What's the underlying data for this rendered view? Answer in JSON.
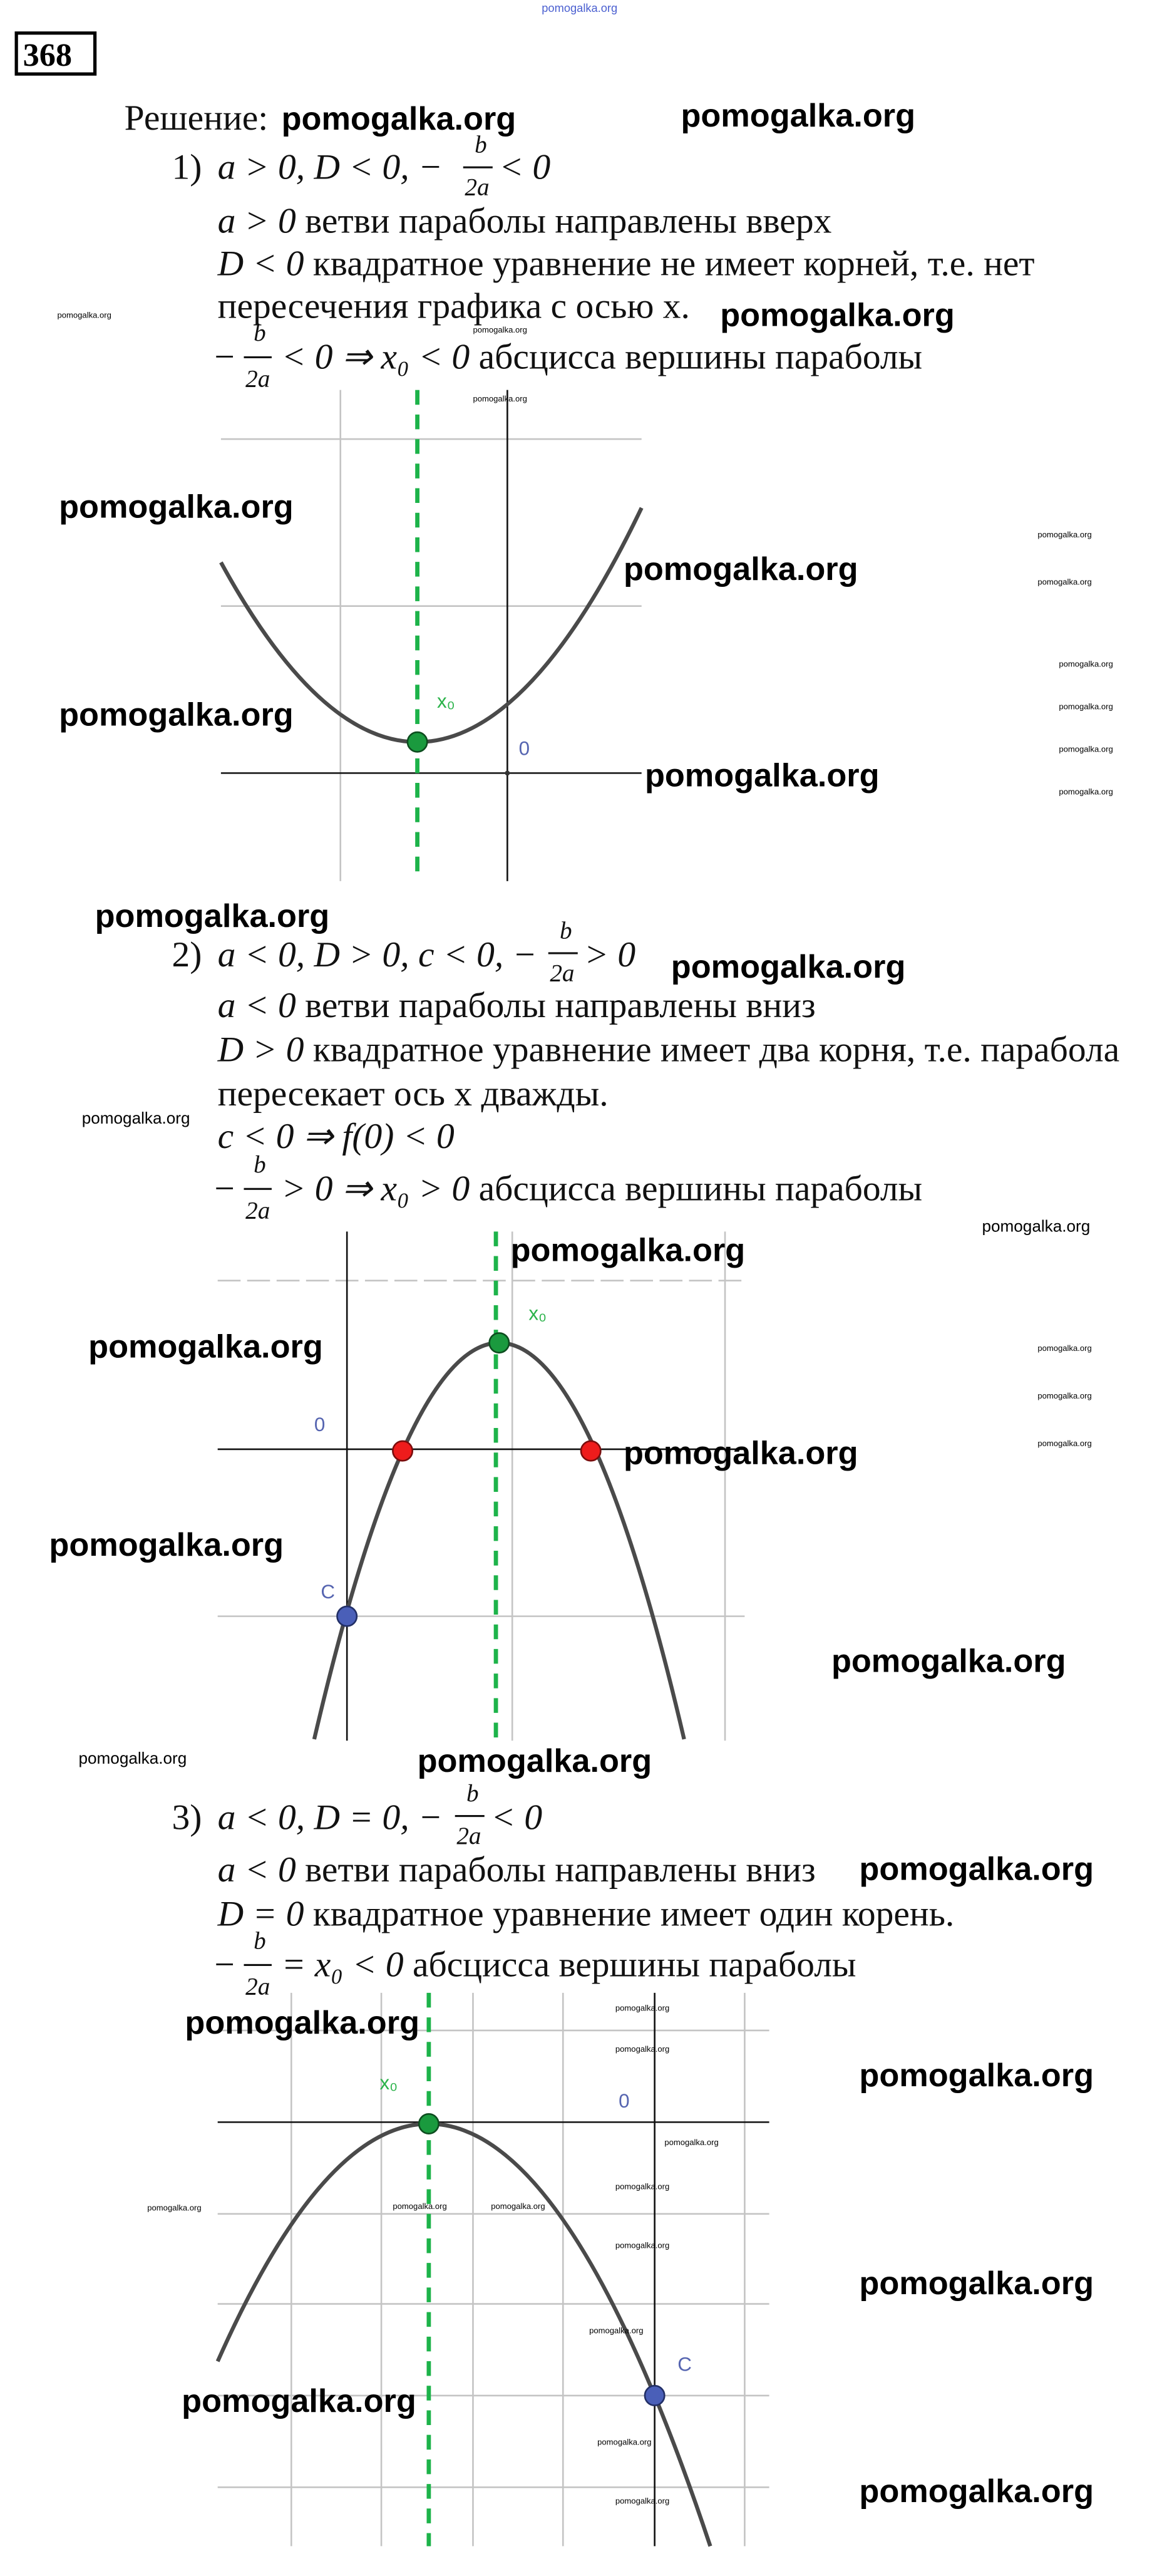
{
  "problem_number": "368",
  "solution_label": "Решение:",
  "watermark": "pomogalka.org",
  "items": [
    {
      "number": "1)",
      "condition": "a > 0, D < 0, −",
      "frac_num": "b",
      "frac_den": "2a",
      "condition_end": "< 0",
      "lines": [
        {
          "math": "a > 0",
          "text": " ветви параболы направлены вверх"
        },
        {
          "math": "D < 0",
          "text": " квадратное уравнение не имеет корней, т.е. нет"
        },
        {
          "text": "пересечения графика с осью x."
        },
        {
          "prefix": "−",
          "math": "< 0 ⇒ x₀ < 0",
          "text": " абсцисса вершины параболы"
        }
      ],
      "graph": {
        "vertex_label": "x₀",
        "origin_label": "0"
      }
    },
    {
      "number": "2)",
      "condition": "a < 0, D > 0, c < 0, −",
      "frac_num": "b",
      "frac_den": "2a",
      "condition_end": "> 0",
      "lines": [
        {
          "math": "a < 0",
          "text": " ветви параболы направлены вниз"
        },
        {
          "math": "D > 0",
          "text": " квадратное уравнение имеет два корня, т.е. парабола"
        },
        {
          "text": "пересекает ось x дважды."
        },
        {
          "math": "c < 0 ⇒ f(0) < 0"
        },
        {
          "prefix": "−",
          "math": "> 0 ⇒ x₀ > 0",
          "text": " абсцисса вершины параболы"
        }
      ],
      "graph": {
        "vertex_label": "x₀",
        "origin_label": "0",
        "intercept_label": "C"
      }
    },
    {
      "number": "3)",
      "condition": "a < 0, D = 0, −",
      "frac_num": "b",
      "frac_den": "2a",
      "condition_end": "< 0",
      "lines": [
        {
          "math": "a < 0",
          "text": " ветви параболы направлены вниз"
        },
        {
          "math": "D = 0",
          "text": " квадратное уравнение имеет один корень."
        },
        {
          "prefix": "−",
          "math": "= x₀ < 0",
          "text": " абсцисса вершины параболы"
        }
      ],
      "graph": {
        "vertex_label": "x₀",
        "origin_label": "0",
        "intercept_label": "C"
      }
    }
  ],
  "colors": {
    "curve": "#4a4a4a",
    "symmetry_axis": "#1db34a",
    "vertex_point": "#1a9a3e",
    "root_points": "#ee1c1c",
    "intercept_point": "#4a5fb8",
    "labels_blue": "#5564b0"
  }
}
